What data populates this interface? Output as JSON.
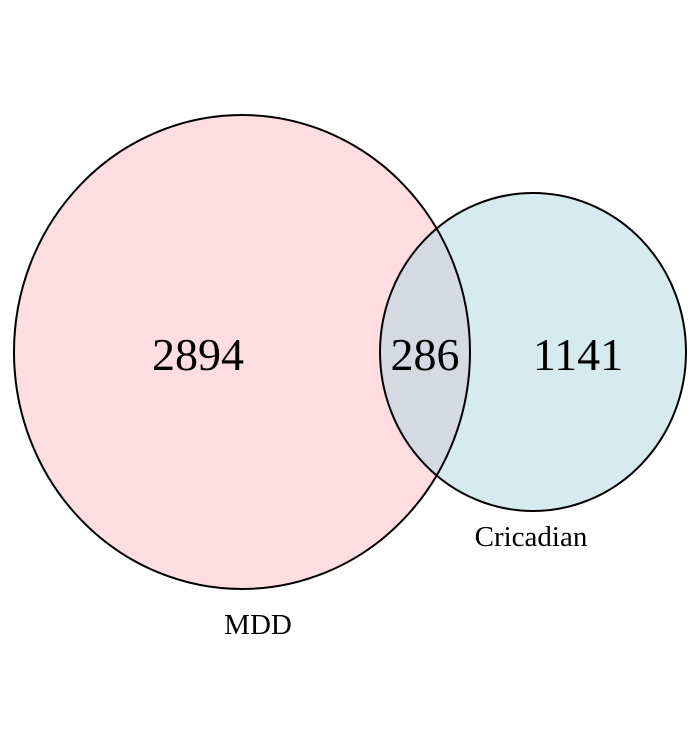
{
  "venn": {
    "sets": [
      {
        "label": "MDD",
        "fill": "#ffdde2"
      },
      {
        "label": "Cricadian",
        "fill": "#d6eaf0"
      }
    ],
    "intersection_fill": "#d5d9e2",
    "stroke": "#000000",
    "counts": {
      "mdd_only": "2894",
      "both": "286",
      "cricadian_only": "1141"
    }
  }
}
